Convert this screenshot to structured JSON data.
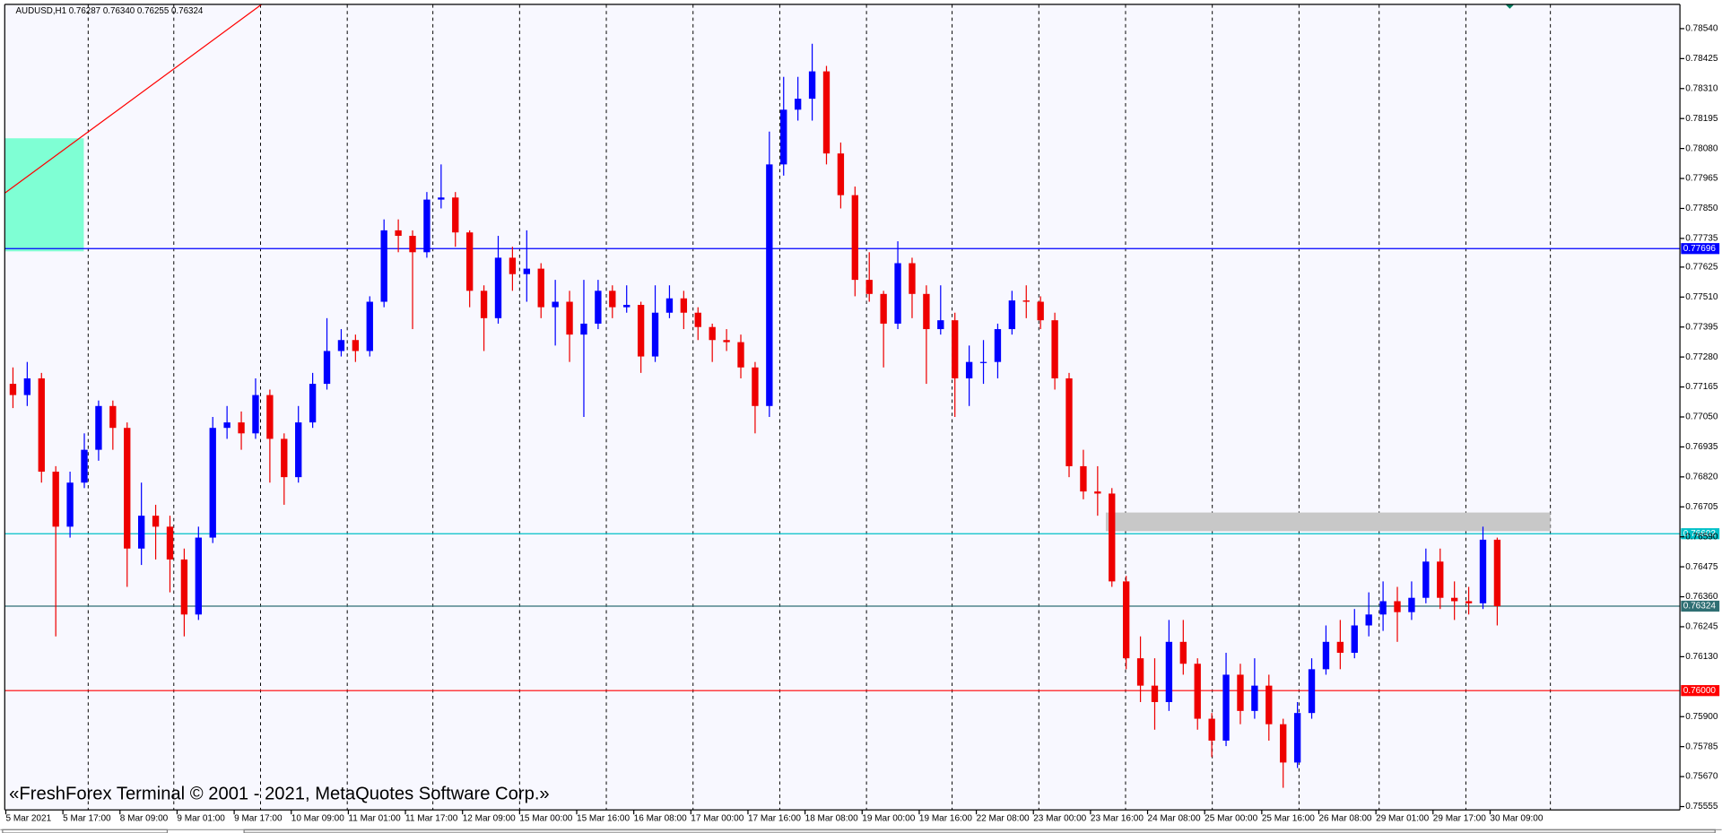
{
  "chart_data": {
    "type": "candlestick",
    "header": "AUDUSD,H1  0.76287 0.76340 0.76255 0.76324",
    "watermark": "«FreshForex Terminal © 2001 - 2021, MetaQuotes Software Corp.»",
    "up_color": "#0000ff",
    "down_color": "#ee0000",
    "xlim": [
      -0.3,
      469.2
    ],
    "ylim": [
      0.75542,
      0.78633
    ],
    "xticks": [
      {
        "value": 0,
        "label": "5 Mar 2021"
      },
      {
        "value": 16,
        "label": "5 Mar 17:00"
      },
      {
        "value": 32,
        "label": "8 Mar 09:00"
      },
      {
        "value": 48,
        "label": "9 Mar 01:00"
      },
      {
        "value": 64,
        "label": "9 Mar 17:00"
      },
      {
        "value": 80,
        "label": "10 Mar 09:00"
      },
      {
        "value": 96,
        "label": "11 Mar 01:00"
      },
      {
        "value": 112,
        "label": "11 Mar 17:00"
      },
      {
        "value": 128,
        "label": "12 Mar 09:00"
      },
      {
        "value": 144,
        "label": "15 Mar 00:00"
      },
      {
        "value": 160,
        "label": "15 Mar 16:00"
      },
      {
        "value": 176,
        "label": "16 Mar 08:00"
      },
      {
        "value": 192,
        "label": "17 Mar 00:00"
      },
      {
        "value": 208,
        "label": "17 Mar 16:00"
      },
      {
        "value": 224,
        "label": "18 Mar 08:00"
      },
      {
        "value": 240,
        "label": "19 Mar 00:00"
      },
      {
        "value": 256,
        "label": "19 Mar 16:00"
      },
      {
        "value": 272,
        "label": "22 Mar 08:00"
      },
      {
        "value": 288,
        "label": "23 Mar 00:00"
      },
      {
        "value": 304,
        "label": "23 Mar 16:00"
      },
      {
        "value": 320,
        "label": "24 Mar 08:00"
      },
      {
        "value": 336,
        "label": "25 Mar 00:00"
      },
      {
        "value": 352,
        "label": "25 Mar 16:00"
      },
      {
        "value": 368,
        "label": "26 Mar 08:00"
      },
      {
        "value": 384,
        "label": "29 Mar 01:00"
      },
      {
        "value": 400,
        "label": "29 Mar 17:00"
      },
      {
        "value": 416,
        "label": "30 Mar 09:00"
      }
    ],
    "yticks": [
      {
        "value": 0.7854,
        "label": "0.78540"
      },
      0.78425,
      {
        "value": 0.7831,
        "label": "0.78310"
      },
      0.78195,
      {
        "value": 0.7808,
        "label": "0.78080"
      },
      0.77965,
      {
        "value": 0.7785,
        "label": "0.77850"
      },
      0.77735,
      0.77625,
      {
        "value": 0.7751,
        "label": "0.77510"
      },
      0.77395,
      {
        "value": 0.7728,
        "label": "0.77280"
      },
      0.77165,
      {
        "value": 0.7705,
        "label": "0.77050"
      },
      0.76935,
      {
        "value": 0.7682,
        "label": "0.76820"
      },
      0.76705,
      {
        "value": 0.7659,
        "label": "0.76590"
      },
      0.76475,
      {
        "value": 0.7636,
        "label": "0.76360"
      },
      0.76245,
      {
        "value": 0.7613,
        "label": "0.76130"
      },
      {
        "value": 0.759,
        "label": "0.75900"
      },
      0.75785,
      {
        "value": 0.7567,
        "label": "0.75670"
      },
      0.75555
    ],
    "levels": [
      {
        "value": 0.77696,
        "color": "#0000ff"
      },
      {
        "value": 0.76602,
        "color": "#00c0c8"
      },
      {
        "value": 0.76324,
        "color": "#2f6f73"
      },
      {
        "value": 0.76,
        "label": "0.76000",
        "color": "#ff0000"
      }
    ],
    "x": [
      2,
      6,
      10,
      14,
      18,
      22,
      26,
      30,
      34,
      38,
      42,
      46,
      50,
      54,
      58,
      62,
      66,
      70,
      74,
      78,
      82,
      86,
      90,
      94,
      98,
      102,
      106,
      110,
      114,
      118,
      122,
      126,
      130,
      134,
      138,
      142,
      146,
      150,
      154,
      158,
      162,
      166,
      170,
      174,
      178,
      182,
      186,
      190,
      194,
      198,
      202,
      206,
      210,
      214,
      218,
      222,
      226,
      230,
      234,
      238,
      242,
      246,
      250,
      254,
      258,
      262,
      266,
      270,
      274,
      278,
      282,
      286,
      290,
      294,
      298,
      302,
      306,
      310,
      314,
      318,
      322,
      326,
      330,
      334,
      338,
      342,
      346,
      350,
      354,
      358,
      362,
      366,
      370,
      374,
      378,
      382,
      386,
      390,
      394,
      398,
      402,
      406,
      410,
      414,
      418
    ],
    "ohlc": [
      [
        0.77177,
        0.7724,
        0.77084,
        0.77134
      ],
      [
        0.77134,
        0.77261,
        0.77092,
        0.77198
      ],
      [
        0.77198,
        0.77219,
        0.76798,
        0.7684
      ],
      [
        0.7684,
        0.76861,
        0.76208,
        0.76629
      ],
      [
        0.76629,
        0.7684,
        0.76587,
        0.76798
      ],
      [
        0.76798,
        0.76987,
        0.76777,
        0.76924
      ],
      [
        0.76924,
        0.77113,
        0.76882,
        0.77092
      ],
      [
        0.77092,
        0.77113,
        0.76924,
        0.77008
      ],
      [
        0.77008,
        0.77029,
        0.76398,
        0.76545
      ],
      [
        0.76545,
        0.76798,
        0.76482,
        0.76671
      ],
      [
        0.76671,
        0.76713,
        0.76503,
        0.76629
      ],
      [
        0.76629,
        0.76671,
        0.76377,
        0.76503
      ],
      [
        0.76503,
        0.76545,
        0.76208,
        0.76292
      ],
      [
        0.76292,
        0.76629,
        0.76271,
        0.76587
      ],
      [
        0.76587,
        0.7705,
        0.76566,
        0.77008
      ],
      [
        0.77008,
        0.77092,
        0.76966,
        0.77029
      ],
      [
        0.77029,
        0.77071,
        0.76924,
        0.76987
      ],
      [
        0.76987,
        0.77198,
        0.76966,
        0.77134
      ],
      [
        0.77134,
        0.77155,
        0.76798,
        0.76966
      ],
      [
        0.76966,
        0.76987,
        0.76713,
        0.76819
      ],
      [
        0.76819,
        0.77092,
        0.76798,
        0.77029
      ],
      [
        0.77029,
        0.77219,
        0.77008,
        0.77177
      ],
      [
        0.77177,
        0.77429,
        0.77155,
        0.77303
      ],
      [
        0.77303,
        0.77387,
        0.77282,
        0.77345
      ],
      [
        0.77345,
        0.77366,
        0.77261,
        0.77303
      ],
      [
        0.77303,
        0.77513,
        0.77282,
        0.77492
      ],
      [
        0.77492,
        0.77808,
        0.77471,
        0.77766
      ],
      [
        0.77766,
        0.77808,
        0.77682,
        0.77745
      ],
      [
        0.77745,
        0.77766,
        0.77387,
        0.77682
      ],
      [
        0.77682,
        0.77913,
        0.77661,
        0.77884
      ],
      [
        0.77884,
        0.78019,
        0.7785,
        0.77892
      ],
      [
        0.77892,
        0.77913,
        0.77703,
        0.77758
      ],
      [
        0.77758,
        0.77766,
        0.77471,
        0.77534
      ],
      [
        0.77534,
        0.77555,
        0.77303,
        0.77429
      ],
      [
        0.77429,
        0.77745,
        0.77408,
        0.77661
      ],
      [
        0.77661,
        0.77703,
        0.77534,
        0.77598
      ],
      [
        0.77598,
        0.77766,
        0.77492,
        0.77619
      ],
      [
        0.77619,
        0.7764,
        0.77429,
        0.77471
      ],
      [
        0.77471,
        0.77576,
        0.77324,
        0.77492
      ],
      [
        0.77492,
        0.77534,
        0.77261,
        0.77366
      ],
      [
        0.77366,
        0.77576,
        0.7705,
        0.77408
      ],
      [
        0.77408,
        0.77576,
        0.77387,
        0.77534
      ],
      [
        0.77534,
        0.77555,
        0.77429,
        0.77471
      ],
      [
        0.77471,
        0.77555,
        0.7745,
        0.7748
      ],
      [
        0.7748,
        0.77492,
        0.77219,
        0.77282
      ],
      [
        0.77282,
        0.77555,
        0.77261,
        0.7745
      ],
      [
        0.7745,
        0.77555,
        0.77429,
        0.77505
      ],
      [
        0.77505,
        0.77534,
        0.77387,
        0.7745
      ],
      [
        0.7745,
        0.77471,
        0.77345,
        0.77395
      ],
      [
        0.77395,
        0.77408,
        0.77261,
        0.77345
      ],
      [
        0.77345,
        0.77387,
        0.77303,
        0.77337
      ],
      [
        0.77337,
        0.77366,
        0.77198,
        0.7724
      ],
      [
        0.7724,
        0.77261,
        0.76987,
        0.77092
      ],
      [
        0.77092,
        0.78145,
        0.7705,
        0.78019
      ],
      [
        0.78019,
        0.78355,
        0.77976,
        0.78229
      ],
      [
        0.78229,
        0.78355,
        0.78187,
        0.78271
      ],
      [
        0.78271,
        0.78482,
        0.78187,
        0.78376
      ],
      [
        0.78376,
        0.78397,
        0.78019,
        0.78061
      ],
      [
        0.78061,
        0.78103,
        0.7785,
        0.77901
      ],
      [
        0.77901,
        0.77934,
        0.77513,
        0.77576
      ],
      [
        0.77576,
        0.77682,
        0.77492,
        0.77522
      ],
      [
        0.77522,
        0.77534,
        0.7724,
        0.77408
      ],
      [
        0.77408,
        0.77724,
        0.77387,
        0.7764
      ],
      [
        0.7764,
        0.77661,
        0.77429,
        0.77522
      ],
      [
        0.77522,
        0.77555,
        0.77177,
        0.77387
      ],
      [
        0.77387,
        0.77555,
        0.77366,
        0.77421
      ],
      [
        0.77421,
        0.7745,
        0.7705,
        0.77198
      ],
      [
        0.77198,
        0.77324,
        0.77092,
        0.77261
      ],
      [
        0.77261,
        0.77345,
        0.77177,
        0.77261
      ],
      [
        0.77261,
        0.77408,
        0.77198,
        0.77387
      ],
      [
        0.77387,
        0.77534,
        0.77366,
        0.77497
      ],
      [
        0.77497,
        0.77555,
        0.77429,
        0.77492
      ],
      [
        0.77492,
        0.77513,
        0.77387,
        0.77421
      ],
      [
        0.77421,
        0.7745,
        0.77155,
        0.77198
      ],
      [
        0.77198,
        0.77219,
        0.76819,
        0.76861
      ],
      [
        0.76861,
        0.76924,
        0.76734,
        0.76764
      ],
      [
        0.76764,
        0.76861,
        0.76671,
        0.76756
      ],
      [
        0.76756,
        0.76777,
        0.76398,
        0.76419
      ],
      [
        0.76419,
        0.7644,
        0.76082,
        0.76124
      ],
      [
        0.76124,
        0.76208,
        0.75956,
        0.76019
      ],
      [
        0.76019,
        0.76124,
        0.7585,
        0.75956
      ],
      [
        0.75956,
        0.76271,
        0.75922,
        0.76187
      ],
      [
        0.76187,
        0.76271,
        0.76061,
        0.76103
      ],
      [
        0.76103,
        0.76124,
        0.7585,
        0.75892
      ],
      [
        0.75892,
        0.75914,
        0.75745,
        0.75808
      ],
      [
        0.75808,
        0.76145,
        0.75787,
        0.76061
      ],
      [
        0.76061,
        0.76103,
        0.75871,
        0.75922
      ],
      [
        0.75922,
        0.76124,
        0.75892,
        0.76019
      ],
      [
        0.76019,
        0.76061,
        0.75808,
        0.75871
      ],
      [
        0.75871,
        0.75892,
        0.75627,
        0.75724
      ],
      [
        0.75724,
        0.75956,
        0.75703,
        0.75914
      ],
      [
        0.75914,
        0.76124,
        0.75892,
        0.76082
      ],
      [
        0.76082,
        0.7625,
        0.76061,
        0.76187
      ],
      [
        0.76187,
        0.76271,
        0.76082,
        0.76145
      ],
      [
        0.76145,
        0.76313,
        0.76124,
        0.7625
      ],
      [
        0.7625,
        0.76377,
        0.76208,
        0.76292
      ],
      [
        0.76292,
        0.76419,
        0.76229,
        0.76343
      ],
      [
        0.76343,
        0.76398,
        0.76187,
        0.76301
      ],
      [
        0.76301,
        0.76419,
        0.76271,
        0.76356
      ],
      [
        0.76356,
        0.76545,
        0.76335,
        0.76495
      ],
      [
        0.76495,
        0.76545,
        0.76313,
        0.76356
      ],
      [
        0.76356,
        0.76419,
        0.76271,
        0.76343
      ],
      [
        0.76343,
        0.76398,
        0.76292,
        0.76335
      ],
      [
        0.76335,
        0.76629,
        0.76313,
        0.76579
      ],
      [
        0.76579,
        0.76587,
        0.7625,
        0.76324
      ]
    ]
  }
}
